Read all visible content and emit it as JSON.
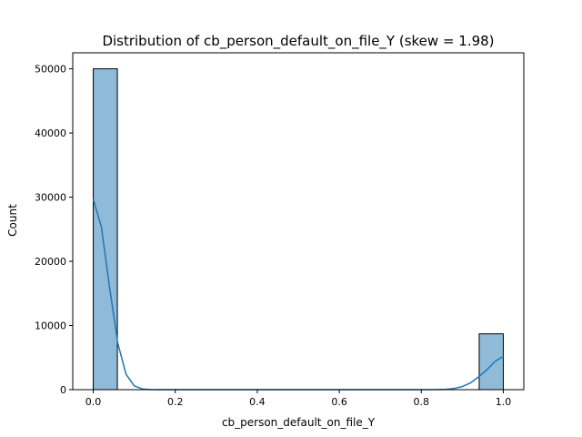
{
  "chart_data": {
    "type": "bar",
    "title": "Distribution of cb_person_default_on_file_Y (skew = 1.98)",
    "xlabel": "cb_person_default_on_file_Y",
    "ylabel": "Count",
    "xlim": [
      -0.05,
      1.05
    ],
    "ylim": [
      0,
      52500
    ],
    "x_ticks": [
      0.0,
      0.2,
      0.4,
      0.6,
      0.8,
      1.0
    ],
    "x_tick_labels": [
      "0.0",
      "0.2",
      "0.4",
      "0.6",
      "0.8",
      "1.0"
    ],
    "y_ticks": [
      0,
      10000,
      20000,
      30000,
      40000,
      50000
    ],
    "y_tick_labels": [
      "0",
      "10000",
      "20000",
      "30000",
      "40000",
      "50000"
    ],
    "bins": [
      {
        "x0": 0.0,
        "x1": 0.0588,
        "count": 50000
      },
      {
        "x0": 0.9412,
        "x1": 1.0,
        "count": 8700
      }
    ],
    "kde": {
      "x": [
        0.0,
        0.02,
        0.04,
        0.06,
        0.08,
        0.1,
        0.12,
        0.14,
        0.16,
        0.18,
        0.2,
        0.3,
        0.4,
        0.5,
        0.6,
        0.7,
        0.8,
        0.84,
        0.86,
        0.88,
        0.9,
        0.92,
        0.94,
        0.96,
        0.98,
        1.0
      ],
      "y": [
        29700,
        25300,
        15800,
        7200,
        2400,
        600,
        100,
        20,
        0,
        0,
        0,
        0,
        0,
        0,
        0,
        0,
        0,
        20,
        60,
        180,
        480,
        1050,
        2000,
        3100,
        4400,
        5200
      ]
    },
    "grid": false,
    "legend": "none",
    "colors": {
      "bar_fill": "#8fbbd9",
      "bar_edge": "#000000",
      "kde_line": "#1f77b4"
    }
  }
}
